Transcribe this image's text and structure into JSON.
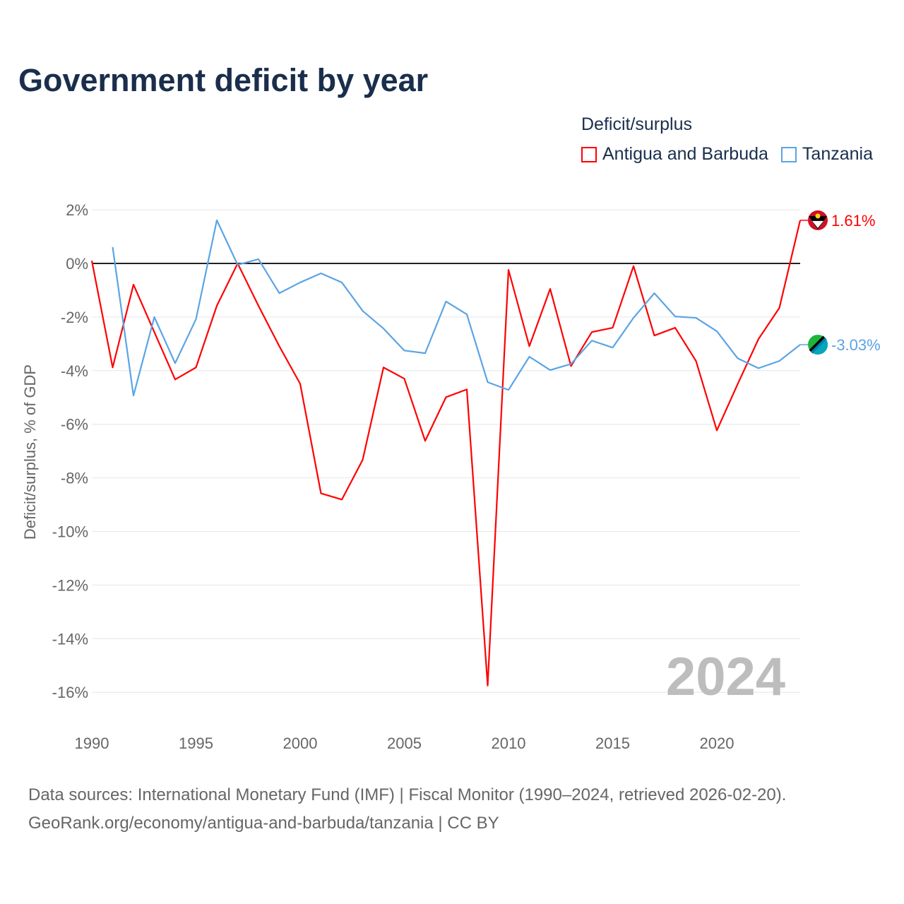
{
  "title": "Government deficit by year",
  "legend_title": "Deficit/surplus",
  "source_line1": "Data sources: International Monetary Fund (IMF) | Fiscal Monitor (1990–2024, retrieved 2026-02-20).",
  "source_line2": "GeoRank.org/economy/antigua-and-barbuda/tanzania | CC BY",
  "chart_data": {
    "type": "line",
    "title": "Government deficit by year",
    "xlabel": "",
    "ylabel": "Deficit/surplus, % of GDP",
    "ylim": [
      -16,
      2
    ],
    "xlim": [
      1990,
      2024
    ],
    "yticks": [
      "2%",
      "0%",
      "-2%",
      "-4%",
      "-6%",
      "-8%",
      "-10%",
      "-12%",
      "-14%",
      "-16%"
    ],
    "ytick_values": [
      2,
      0,
      -2,
      -4,
      -6,
      -8,
      -10,
      -12,
      -14,
      -16
    ],
    "xticks": [
      "1990",
      "1995",
      "2000",
      "2005",
      "2010",
      "2015",
      "2020"
    ],
    "xtick_values": [
      1990,
      1995,
      2000,
      2005,
      2010,
      2015,
      2020
    ],
    "grid": true,
    "legend_placement": "top-right",
    "watermark": "2024",
    "series": [
      {
        "name": "Antigua and Barbuda",
        "color": "#ff0000",
        "end_label": "1.61%",
        "flag": "antigua-flag-icon",
        "x": [
          1990,
          1991,
          1992,
          1993,
          1994,
          1995,
          1996,
          1997,
          1998,
          1999,
          2000,
          2001,
          2002,
          2003,
          2004,
          2005,
          2006,
          2007,
          2008,
          2009,
          2010,
          2011,
          2012,
          2013,
          2014,
          2015,
          2016,
          2017,
          2018,
          2019,
          2020,
          2021,
          2022,
          2023,
          2024
        ],
        "values": [
          0.1,
          -3.88,
          -0.79,
          -2.56,
          -4.33,
          -3.88,
          -1.58,
          0,
          -1.58,
          -3.09,
          -4.49,
          -8.58,
          -8.81,
          -7.33,
          -3.88,
          -4.3,
          -6.62,
          -4.99,
          -4.7,
          -15.75,
          -0.24,
          -3.09,
          -0.95,
          -3.83,
          -2.56,
          -2.4,
          -0.1,
          -2.69,
          -2.4,
          -3.64,
          -6.23,
          -4.5,
          -2.82,
          -1.66,
          1.61
        ]
      },
      {
        "name": "Tanzania",
        "color": "#5ba4e5",
        "end_label": "-3.03%",
        "flag": "tanzania-flag-icon",
        "x": [
          1991,
          1992,
          1993,
          1994,
          1995,
          1996,
          1997,
          1998,
          1999,
          2000,
          2001,
          2002,
          2003,
          2004,
          2005,
          2006,
          2007,
          2008,
          2009,
          2010,
          2011,
          2012,
          2013,
          2014,
          2015,
          2016,
          2017,
          2018,
          2019,
          2020,
          2021,
          2022,
          2023,
          2024
        ],
        "values": [
          0.61,
          -4.93,
          -2.0,
          -3.72,
          -2.08,
          1.61,
          -0.05,
          0.16,
          -1.11,
          -0.71,
          -0.37,
          -0.71,
          -1.77,
          -2.43,
          -3.25,
          -3.35,
          -1.42,
          -1.9,
          -4.43,
          -4.72,
          -3.48,
          -3.98,
          -3.75,
          -2.88,
          -3.14,
          -2.03,
          -1.11,
          -1.98,
          -2.03,
          -2.53,
          -3.54,
          -3.91,
          -3.64,
          -3.03
        ]
      }
    ]
  }
}
